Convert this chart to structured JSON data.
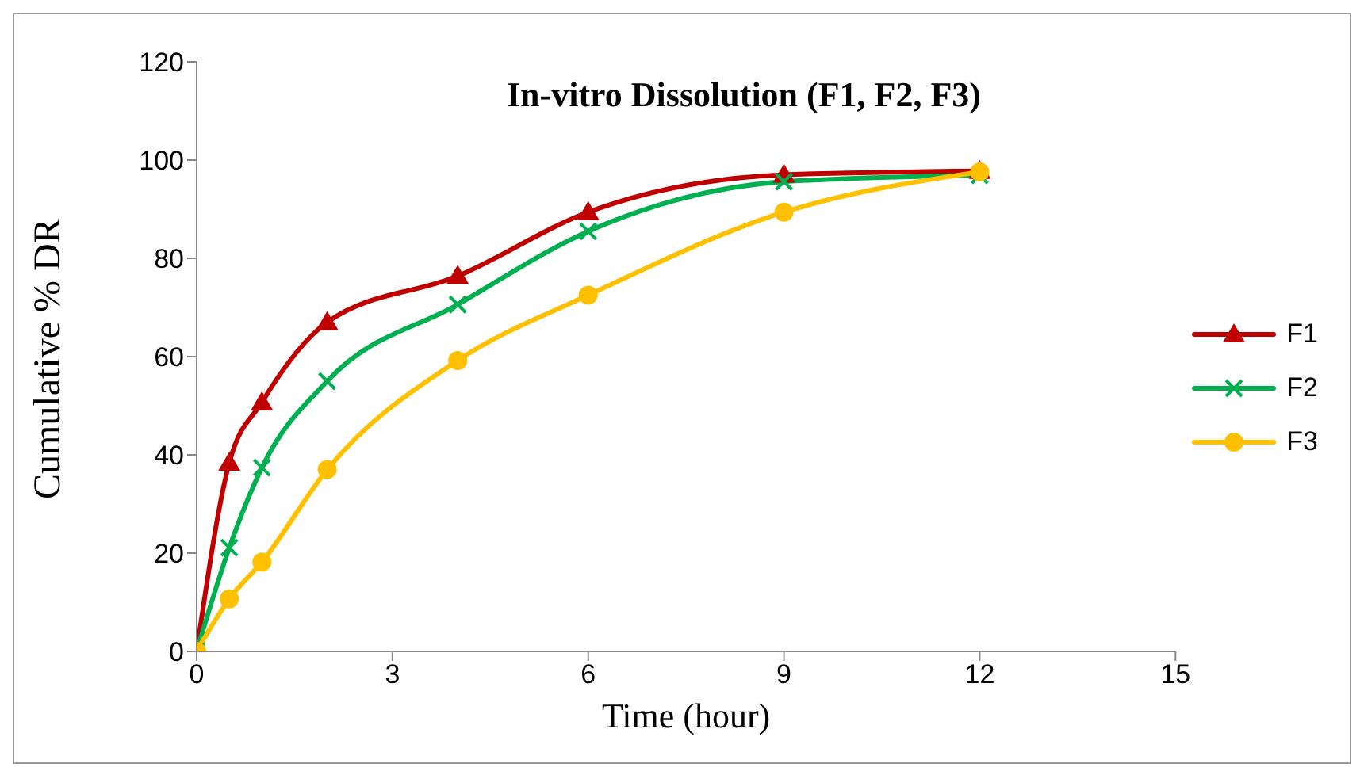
{
  "chart_data": {
    "type": "line",
    "title": "In-vitro Dissolution (F1, F2, F3)",
    "xlabel": "Time (hour)",
    "ylabel": "Cumulative % DR",
    "x": [
      0,
      0.5,
      1,
      2,
      4,
      6,
      9,
      12
    ],
    "series": [
      {
        "name": "F1",
        "color": "#c00000",
        "marker": "triangle",
        "values": [
          0,
          38.4,
          50.7,
          67,
          76.4,
          89.4,
          97,
          97.8
        ]
      },
      {
        "name": "F2",
        "color": "#00b050",
        "marker": "cross",
        "values": [
          0,
          21.1,
          37.4,
          55,
          70.6,
          85.5,
          95.6,
          96.9
        ]
      },
      {
        "name": "F3",
        "color": "#ffc000",
        "marker": "circle",
        "values": [
          0,
          10.7,
          18.2,
          37,
          59.2,
          72.5,
          89.4,
          97.6
        ]
      }
    ],
    "xlim": [
      0,
      15
    ],
    "xticks": [
      0,
      3,
      6,
      9,
      12,
      15
    ],
    "ylim": [
      0,
      120
    ],
    "yticks": [
      0,
      20,
      40,
      60,
      80,
      100,
      120
    ],
    "grid": false,
    "legend": "right",
    "line_style": "solid"
  }
}
